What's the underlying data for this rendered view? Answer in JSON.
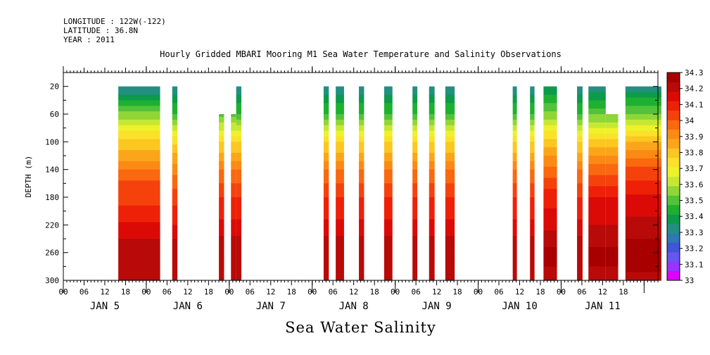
{
  "header": {
    "longitude": "LONGITUDE : 122W(-122)",
    "latitude": "LATITUDE : 36.8N",
    "year": "YEAR : 2011"
  },
  "chart_data": {
    "type": "heatmap",
    "title": "Hourly Gridded MBARI Mooring M1 Sea Water Temperature and Salinity Observations",
    "xlabel": "Sea Water Salinity",
    "ylabel": "DEPTH (m)",
    "x_range_hours": [
      0,
      172
    ],
    "x_start": "JAN 5 00",
    "y_range": [
      0,
      300
    ],
    "y_inverted": true,
    "y_ticks": [
      20,
      60,
      100,
      140,
      180,
      220,
      260,
      300
    ],
    "x_hour_ticks": [
      "00",
      "06",
      "12",
      "18",
      "00",
      "06",
      "12",
      "18",
      "00",
      "06",
      "12",
      "18",
      "00",
      "06",
      "12",
      "18",
      "00",
      "06",
      "12",
      "18",
      "00",
      "06",
      "12",
      "18",
      "00",
      "06",
      "12",
      "18"
    ],
    "day_labels": [
      "JAN  5",
      "JAN  6",
      "JAN  7",
      "JAN  8",
      "JAN  9",
      "JAN 10",
      "JAN 11"
    ],
    "colorbar": {
      "levels": [
        33,
        33.1,
        33.2,
        33.3,
        33.4,
        33.5,
        33.6,
        33.7,
        33.8,
        33.9,
        34,
        34.1,
        34.2,
        34.3
      ],
      "labels": [
        "33",
        "33.1",
        "33.2",
        "33.3",
        "33.4",
        "33.5",
        "33.6",
        "33.7",
        "33.8",
        "33.9",
        "34",
        "34.1",
        "34.2",
        "34.3"
      ],
      "colors": [
        "#dd00ff",
        "#9933ff",
        "#6655ee",
        "#3f56d9",
        "#2e78b5",
        "#238f80",
        "#0c9a4c",
        "#1fb030",
        "#53c23a",
        "#8fd638",
        "#c6e834",
        "#eef22a",
        "#fbe22a",
        "#fcc720",
        "#fba61a",
        "#fb8a14",
        "#fa6810",
        "#f5420c",
        "#ee2108",
        "#dc0a06",
        "#b80a08",
        "#a80000"
      ]
    },
    "segments": [
      {
        "start": 15.9,
        "end": 28.0,
        "top": 20,
        "profile": [
          [
            20,
            33.3
          ],
          [
            40,
            33.4
          ],
          [
            60,
            33.55
          ],
          [
            80,
            33.68
          ],
          [
            100,
            33.78
          ],
          [
            120,
            33.86
          ],
          [
            140,
            33.94
          ],
          [
            160,
            34.02
          ],
          [
            180,
            34.04
          ],
          [
            200,
            34.08
          ],
          [
            220,
            34.14
          ],
          [
            240,
            34.18
          ],
          [
            260,
            34.24
          ],
          [
            280,
            34.2
          ],
          [
            300,
            34.2
          ]
        ]
      },
      {
        "start": 31.5,
        "end": 33.0,
        "top": 20,
        "profile": [
          [
            20,
            33.3
          ],
          [
            60,
            33.48
          ],
          [
            100,
            33.76
          ],
          [
            140,
            33.92
          ],
          [
            180,
            34.04
          ],
          [
            220,
            34.12
          ],
          [
            260,
            34.24
          ],
          [
            300,
            34.2
          ]
        ]
      },
      {
        "start": 45.0,
        "end": 46.5,
        "top": 60,
        "profile": [
          [
            60,
            33.5
          ],
          [
            100,
            33.76
          ],
          [
            140,
            33.94
          ],
          [
            180,
            34.06
          ],
          [
            220,
            34.14
          ],
          [
            260,
            34.24
          ],
          [
            300,
            34.2
          ]
        ]
      },
      {
        "start": 48.5,
        "end": 50.0,
        "top": 60,
        "profile": [
          [
            60,
            33.5
          ],
          [
            100,
            33.76
          ],
          [
            140,
            33.94
          ],
          [
            180,
            34.06
          ],
          [
            220,
            34.14
          ],
          [
            260,
            34.24
          ],
          [
            300,
            34.2
          ]
        ]
      },
      {
        "start": 50.0,
        "end": 51.5,
        "top": 20,
        "profile": [
          [
            20,
            33.3
          ],
          [
            60,
            33.48
          ],
          [
            100,
            33.76
          ],
          [
            140,
            33.94
          ],
          [
            180,
            34.06
          ],
          [
            220,
            34.14
          ],
          [
            260,
            34.24
          ],
          [
            300,
            34.2
          ]
        ]
      },
      {
        "start": 75.3,
        "end": 76.8,
        "top": 20,
        "profile": [
          [
            20,
            33.3
          ],
          [
            60,
            33.48
          ],
          [
            100,
            33.76
          ],
          [
            140,
            33.94
          ],
          [
            180,
            34.06
          ],
          [
            220,
            34.14
          ],
          [
            260,
            34.24
          ],
          [
            300,
            34.2
          ]
        ]
      },
      {
        "start": 78.8,
        "end": 81.2,
        "top": 20,
        "profile": [
          [
            20,
            33.3
          ],
          [
            60,
            33.48
          ],
          [
            100,
            33.76
          ],
          [
            140,
            33.94
          ],
          [
            180,
            34.06
          ],
          [
            220,
            34.14
          ],
          [
            260,
            34.24
          ],
          [
            300,
            34.2
          ]
        ]
      },
      {
        "start": 85.5,
        "end": 87.0,
        "top": 20,
        "profile": [
          [
            20,
            33.3
          ],
          [
            60,
            33.48
          ],
          [
            100,
            33.76
          ],
          [
            140,
            33.94
          ],
          [
            180,
            34.06
          ],
          [
            220,
            34.14
          ],
          [
            260,
            34.24
          ],
          [
            300,
            34.2
          ]
        ]
      },
      {
        "start": 92.8,
        "end": 95.2,
        "top": 20,
        "profile": [
          [
            20,
            33.3
          ],
          [
            60,
            33.48
          ],
          [
            100,
            33.76
          ],
          [
            140,
            33.94
          ],
          [
            180,
            34.06
          ],
          [
            220,
            34.14
          ],
          [
            260,
            34.24
          ],
          [
            300,
            34.2
          ]
        ]
      },
      {
        "start": 101.0,
        "end": 102.4,
        "top": 20,
        "profile": [
          [
            20,
            33.3
          ],
          [
            60,
            33.48
          ],
          [
            100,
            33.76
          ],
          [
            140,
            33.94
          ],
          [
            180,
            34.06
          ],
          [
            220,
            34.14
          ],
          [
            260,
            34.24
          ],
          [
            300,
            34.2
          ]
        ]
      },
      {
        "start": 105.8,
        "end": 107.4,
        "top": 20,
        "profile": [
          [
            20,
            33.3
          ],
          [
            60,
            33.48
          ],
          [
            100,
            33.76
          ],
          [
            140,
            33.94
          ],
          [
            180,
            34.06
          ],
          [
            220,
            34.14
          ],
          [
            260,
            34.24
          ],
          [
            300,
            34.2
          ]
        ]
      },
      {
        "start": 110.5,
        "end": 113.2,
        "top": 20,
        "profile": [
          [
            20,
            33.3
          ],
          [
            60,
            33.48
          ],
          [
            100,
            33.76
          ],
          [
            140,
            33.94
          ],
          [
            180,
            34.06
          ],
          [
            220,
            34.14
          ],
          [
            260,
            34.24
          ],
          [
            300,
            34.2
          ]
        ]
      },
      {
        "start": 130.0,
        "end": 131.2,
        "top": 20,
        "profile": [
          [
            20,
            33.3
          ],
          [
            60,
            33.48
          ],
          [
            100,
            33.76
          ],
          [
            140,
            33.94
          ],
          [
            180,
            34.06
          ],
          [
            220,
            34.14
          ],
          [
            260,
            34.24
          ],
          [
            300,
            34.2
          ]
        ]
      },
      {
        "start": 135.0,
        "end": 136.3,
        "top": 20,
        "profile": [
          [
            20,
            33.3
          ],
          [
            60,
            33.48
          ],
          [
            100,
            33.76
          ],
          [
            140,
            33.94
          ],
          [
            180,
            34.06
          ],
          [
            220,
            34.14
          ],
          [
            260,
            34.24
          ],
          [
            300,
            34.2
          ]
        ]
      },
      {
        "start": 138.9,
        "end": 142.8,
        "top": 20,
        "profile": [
          [
            20,
            33.35
          ],
          [
            60,
            33.55
          ],
          [
            100,
            33.8
          ],
          [
            140,
            33.96
          ],
          [
            180,
            34.1
          ],
          [
            220,
            34.16
          ],
          [
            260,
            34.26
          ],
          [
            300,
            34.22
          ]
        ]
      },
      {
        "start": 148.6,
        "end": 150.2,
        "top": 20,
        "profile": [
          [
            20,
            33.3
          ],
          [
            60,
            33.48
          ],
          [
            100,
            33.76
          ],
          [
            140,
            33.94
          ],
          [
            180,
            34.06
          ],
          [
            220,
            34.14
          ],
          [
            260,
            34.24
          ],
          [
            300,
            34.2
          ]
        ]
      },
      {
        "start": 151.9,
        "end": 156.9,
        "top": 20,
        "profile": [
          [
            20,
            33.32
          ],
          [
            60,
            33.52
          ],
          [
            100,
            33.8
          ],
          [
            140,
            33.98
          ],
          [
            180,
            34.12
          ],
          [
            220,
            34.18
          ],
          [
            260,
            34.26
          ],
          [
            300,
            34.22
          ]
        ]
      },
      {
        "start": 156.9,
        "end": 160.5,
        "top": 60,
        "profile": [
          [
            60,
            33.52
          ],
          [
            100,
            33.8
          ],
          [
            140,
            33.98
          ],
          [
            180,
            34.12
          ],
          [
            220,
            34.18
          ],
          [
            260,
            34.26
          ],
          [
            300,
            34.22
          ]
        ]
      },
      {
        "start": 162.6,
        "end": 173.0,
        "top": 20,
        "profile": [
          [
            20,
            33.32
          ],
          [
            60,
            33.54
          ],
          [
            100,
            33.84
          ],
          [
            140,
            34.02
          ],
          [
            180,
            34.14
          ],
          [
            220,
            34.2
          ],
          [
            260,
            34.28
          ],
          [
            300,
            34.22
          ]
        ]
      }
    ]
  }
}
